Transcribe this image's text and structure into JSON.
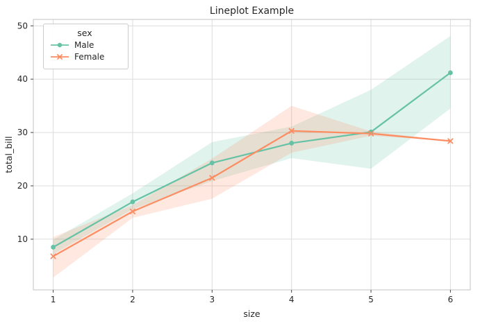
{
  "figure": {
    "title": "Lineplot Example",
    "xlabel": "size",
    "ylabel": "total_bill"
  },
  "legend": {
    "title": "sex"
  },
  "chart_data": {
    "type": "line",
    "title": "Lineplot Example",
    "xlabel": "size",
    "ylabel": "total_bill",
    "x": [
      1,
      2,
      3,
      4,
      5,
      6
    ],
    "xticks": [
      1,
      2,
      3,
      4,
      5,
      6
    ],
    "yticks": [
      10,
      20,
      30,
      40,
      50
    ],
    "xlim": [
      0.75,
      6.25
    ],
    "ylim": [
      0.5,
      51.2
    ],
    "grid": true,
    "legend": {
      "title": "sex",
      "position": "upper left"
    },
    "band_opacity": 0.2,
    "layout_colors": {
      "grid": "#dcdcdc",
      "spine": "#cccccc",
      "tick": "#444444",
      "tick_label": "#262626"
    },
    "series": [
      {
        "name": "Male",
        "color": "#66c2a5",
        "marker": "circle",
        "values": [
          8.5,
          17.0,
          24.3,
          28.0,
          30.1,
          41.2
        ],
        "ci_lower": [
          7.2,
          15.6,
          20.9,
          25.2,
          23.2,
          34.5
        ],
        "ci_upper": [
          9.9,
          18.6,
          28.2,
          31.1,
          38.0,
          48.1
        ]
      },
      {
        "name": "Female",
        "color": "#fc8d62",
        "marker": "x",
        "values": [
          6.8,
          15.2,
          21.5,
          30.3,
          29.8,
          28.4
        ],
        "ci_lower": [
          2.8,
          14.0,
          17.6,
          26.2,
          29.4,
          28.4
        ],
        "ci_upper": [
          10.4,
          16.4,
          25.1,
          35.0,
          30.2,
          28.4
        ]
      }
    ]
  }
}
